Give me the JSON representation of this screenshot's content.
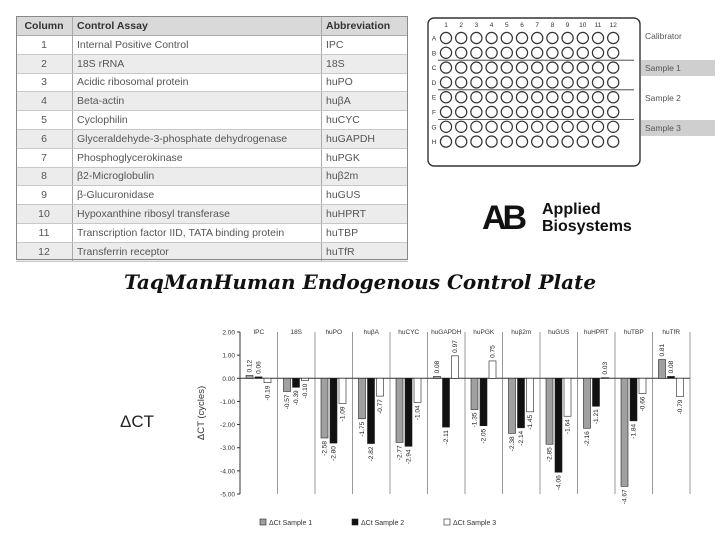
{
  "table": {
    "headers": [
      "Column",
      "Control Assay",
      "Abbreviation"
    ],
    "rows": [
      [
        "1",
        "Internal Positive Control",
        "IPC"
      ],
      [
        "2",
        "18S rRNA",
        "18S"
      ],
      [
        "3",
        "Acidic ribosomal protein",
        "huPO"
      ],
      [
        "4",
        "Beta-actin",
        "huβA"
      ],
      [
        "5",
        "Cyclophilin",
        "huCYC"
      ],
      [
        "6",
        "Glyceraldehyde-3-phosphate dehydrogenase",
        "huGAPDH"
      ],
      [
        "7",
        "Phosphoglycerokinase",
        "huPGK"
      ],
      [
        "8",
        "β2-Microglobulin",
        "huβ2m"
      ],
      [
        "9",
        "β-Glucuronidase",
        "huGUS"
      ],
      [
        "10",
        "Hypoxanthine ribosyl transferase",
        "huHPRT"
      ],
      [
        "11",
        "Transcription factor IID, TATA binding protein",
        "huTBP"
      ],
      [
        "12",
        "Transferrin receptor",
        "huTfR"
      ]
    ]
  },
  "plate": {
    "columns": [
      "1",
      "2",
      "3",
      "4",
      "5",
      "6",
      "7",
      "8",
      "9",
      "10",
      "11",
      "12"
    ],
    "rows": [
      "A",
      "B",
      "C",
      "D",
      "E",
      "F",
      "G",
      "H"
    ],
    "labels": [
      {
        "text": "Calibrator",
        "shaded": false
      },
      {
        "text": "Sample 1",
        "shaded": true
      },
      {
        "text": "Sample 2",
        "shaded": false
      },
      {
        "text": "Sample 3",
        "shaded": true
      }
    ]
  },
  "logo": {
    "line1": "Applied",
    "line2": "Biosystems"
  },
  "title": "TaqManHuman Endogenous Control Plate",
  "delta_ct_label": "ΔCT",
  "chart_data": {
    "type": "bar",
    "categories": [
      "IPC",
      "18S",
      "huPO",
      "huβA",
      "huCYC",
      "huGAPDH",
      "huPGK",
      "huβ2m",
      "huGUS",
      "huHPRT",
      "huTBP",
      "huTfR"
    ],
    "ylabel": "ΔCT (cycles)",
    "ylim": [
      -5,
      2
    ],
    "yticks": [
      "2.00",
      "1.00",
      "0.00",
      "-1.00",
      "-2.00",
      "-3.00",
      "-4.00",
      "-5.00"
    ],
    "series": [
      {
        "name": "ΔCt Sample 1",
        "color": "#a0a0a0",
        "values": [
          0.12,
          -0.57,
          -2.58,
          -1.75,
          -2.77,
          0.08,
          -1.35,
          -2.38,
          -2.85,
          -2.16,
          -4.67,
          0.81
        ],
        "labels": [
          "0.12",
          "-0.57",
          "-2.58",
          "-1.75",
          "-2.77",
          "0.08",
          "-1.35",
          "-2.38",
          "-2.85",
          "-2.16",
          "-4.67",
          "0.81"
        ]
      },
      {
        "name": "ΔCt Sample 2",
        "color": "#111111",
        "values": [
          0.06,
          -0.39,
          -2.8,
          -2.82,
          -2.94,
          -2.11,
          -2.05,
          -2.14,
          -4.06,
          -1.21,
          -1.84,
          0.08
        ],
        "labels": [
          "0.06",
          "-0.39",
          "-2.80",
          "-2.82",
          "-2.94",
          "-2.11",
          "-2.05",
          "-2.14",
          "-4.06",
          "-1.21",
          "-1.84",
          "0.08"
        ]
      },
      {
        "name": "ΔCt Sample 3",
        "color": "#ffffff",
        "values": [
          -0.19,
          -0.1,
          -1.09,
          -0.77,
          -1.04,
          0.97,
          0.75,
          -1.45,
          -1.64,
          0.03,
          -0.66,
          -0.79
        ],
        "labels": [
          "-0.19",
          "-0.10",
          "-1.09",
          "-0.77",
          "-1.04",
          "0.97",
          "0.75",
          "-1.45",
          "-1.64",
          "0.03",
          "-0.66",
          "-0.79"
        ]
      }
    ],
    "legend": [
      "ΔCt Sample 1",
      "ΔCt Sample 2",
      "ΔCt Sample 3"
    ],
    "legend_position": "bottom"
  }
}
